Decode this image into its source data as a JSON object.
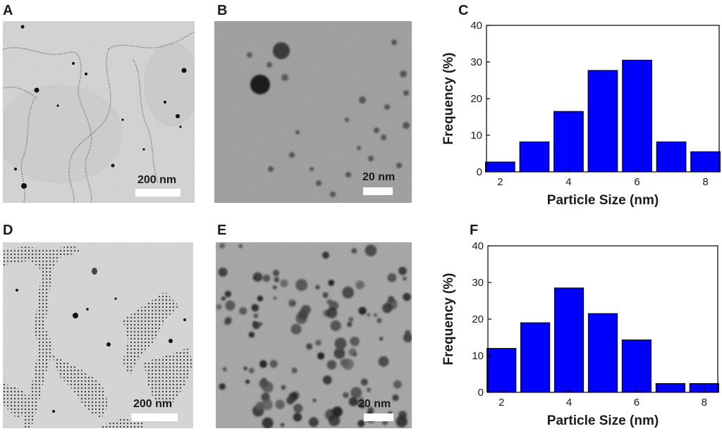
{
  "panels": [
    {
      "letter": "A",
      "scale_label": "200 nm"
    },
    {
      "letter": "B",
      "scale_label": "20 nm"
    },
    {
      "letter": "C"
    },
    {
      "letter": "D",
      "scale_label": "200 nm"
    },
    {
      "letter": "E",
      "scale_label": "20 nm"
    },
    {
      "letter": "F"
    }
  ],
  "colors": {
    "bar": "#0000ff",
    "bar_edge": "#000000"
  },
  "chart_data": [
    {
      "type": "bar",
      "panel": "C",
      "xlabel": "Particle Size (nm)",
      "ylabel": "Frequency (%)",
      "x": [
        2,
        3,
        4,
        5,
        6,
        7,
        8
      ],
      "values": [
        2.7,
        8.2,
        16.5,
        27.7,
        30.5,
        8.2,
        5.5
      ],
      "xlim": [
        1.6,
        8.4
      ],
      "ylim": [
        0,
        40
      ],
      "xticks": [
        2,
        4,
        6,
        8
      ],
      "yticks": [
        0,
        10,
        20,
        30,
        40
      ]
    },
    {
      "type": "bar",
      "panel": "F",
      "xlabel": "Particle Size (nm)",
      "ylabel": "Frequency (%)",
      "x": [
        2,
        3,
        4,
        5,
        6,
        7,
        8
      ],
      "values": [
        12,
        19,
        28.5,
        21.5,
        14.3,
        2.4,
        2.4
      ],
      "xlim": [
        1.6,
        8.4
      ],
      "ylim": [
        0,
        40
      ],
      "xticks": [
        2,
        4,
        6,
        8
      ],
      "yticks": [
        0,
        10,
        20,
        30,
        40
      ]
    }
  ]
}
